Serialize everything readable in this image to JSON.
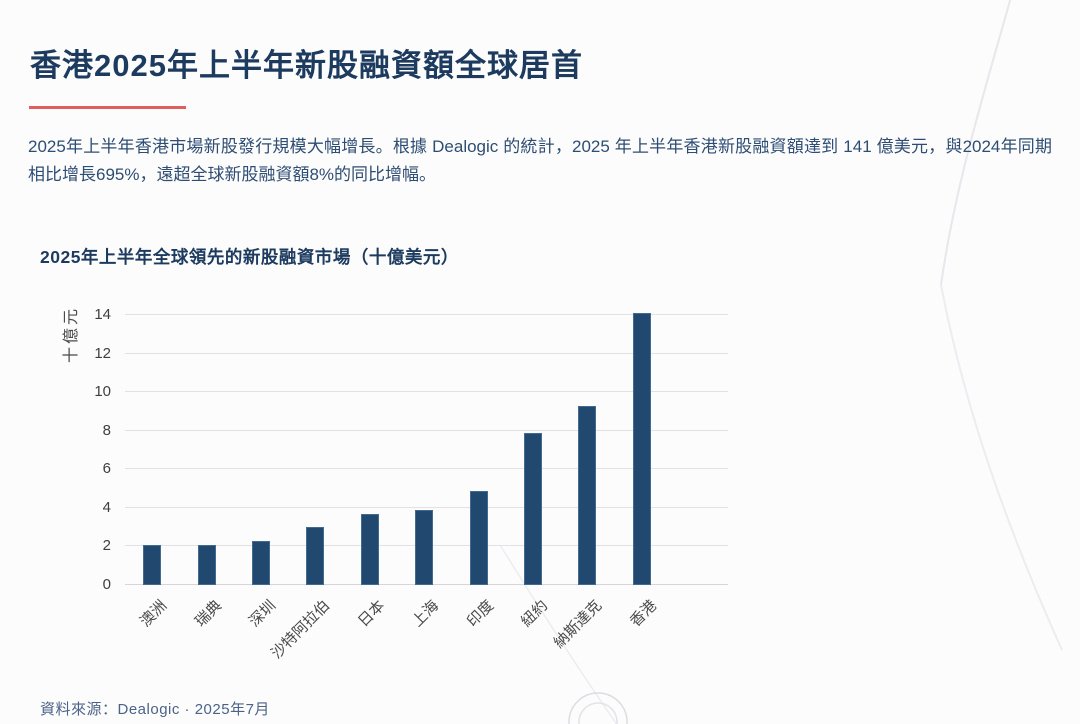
{
  "page": {
    "title": "香港2025年上半年新股融資額全球居首",
    "paragraph": "2025年上半年香港市場新股發行規模大幅增長。根據 Dealogic 的統計，2025 年上半年香港新股融資額達到 141 億美元，與2024年同期相比增長695%，遠超全球新股融資額8%的同比增幅。",
    "source": "資料來源：Dealogic · 2025年7月"
  },
  "colors": {
    "title_navy": "#1d3a5f",
    "body_text": "#2e4d73",
    "accent_red": "#e05e5e",
    "bar_navy": "#21486e",
    "gridline": "#e2e2e6",
    "tick_text": "#3f3f3f",
    "source_text": "#4b6388"
  },
  "chart_data": {
    "type": "bar",
    "title": "2025年上半年全球領先的新股融資市場（十億美元）",
    "ylabel": "十億元",
    "xlabel": "",
    "categories": [
      "澳洲",
      "瑞典",
      "深圳",
      "沙特阿拉伯",
      "日本",
      "上海",
      "印度",
      "紐約",
      "納斯達克",
      "香港"
    ],
    "values": [
      2.1,
      2.1,
      2.3,
      3.0,
      3.7,
      3.9,
      4.9,
      7.9,
      9.3,
      14.1
    ],
    "ylim": [
      0,
      14
    ],
    "ytick_step": 2,
    "grid": true,
    "legend": null,
    "bar_color": "#21486e"
  }
}
